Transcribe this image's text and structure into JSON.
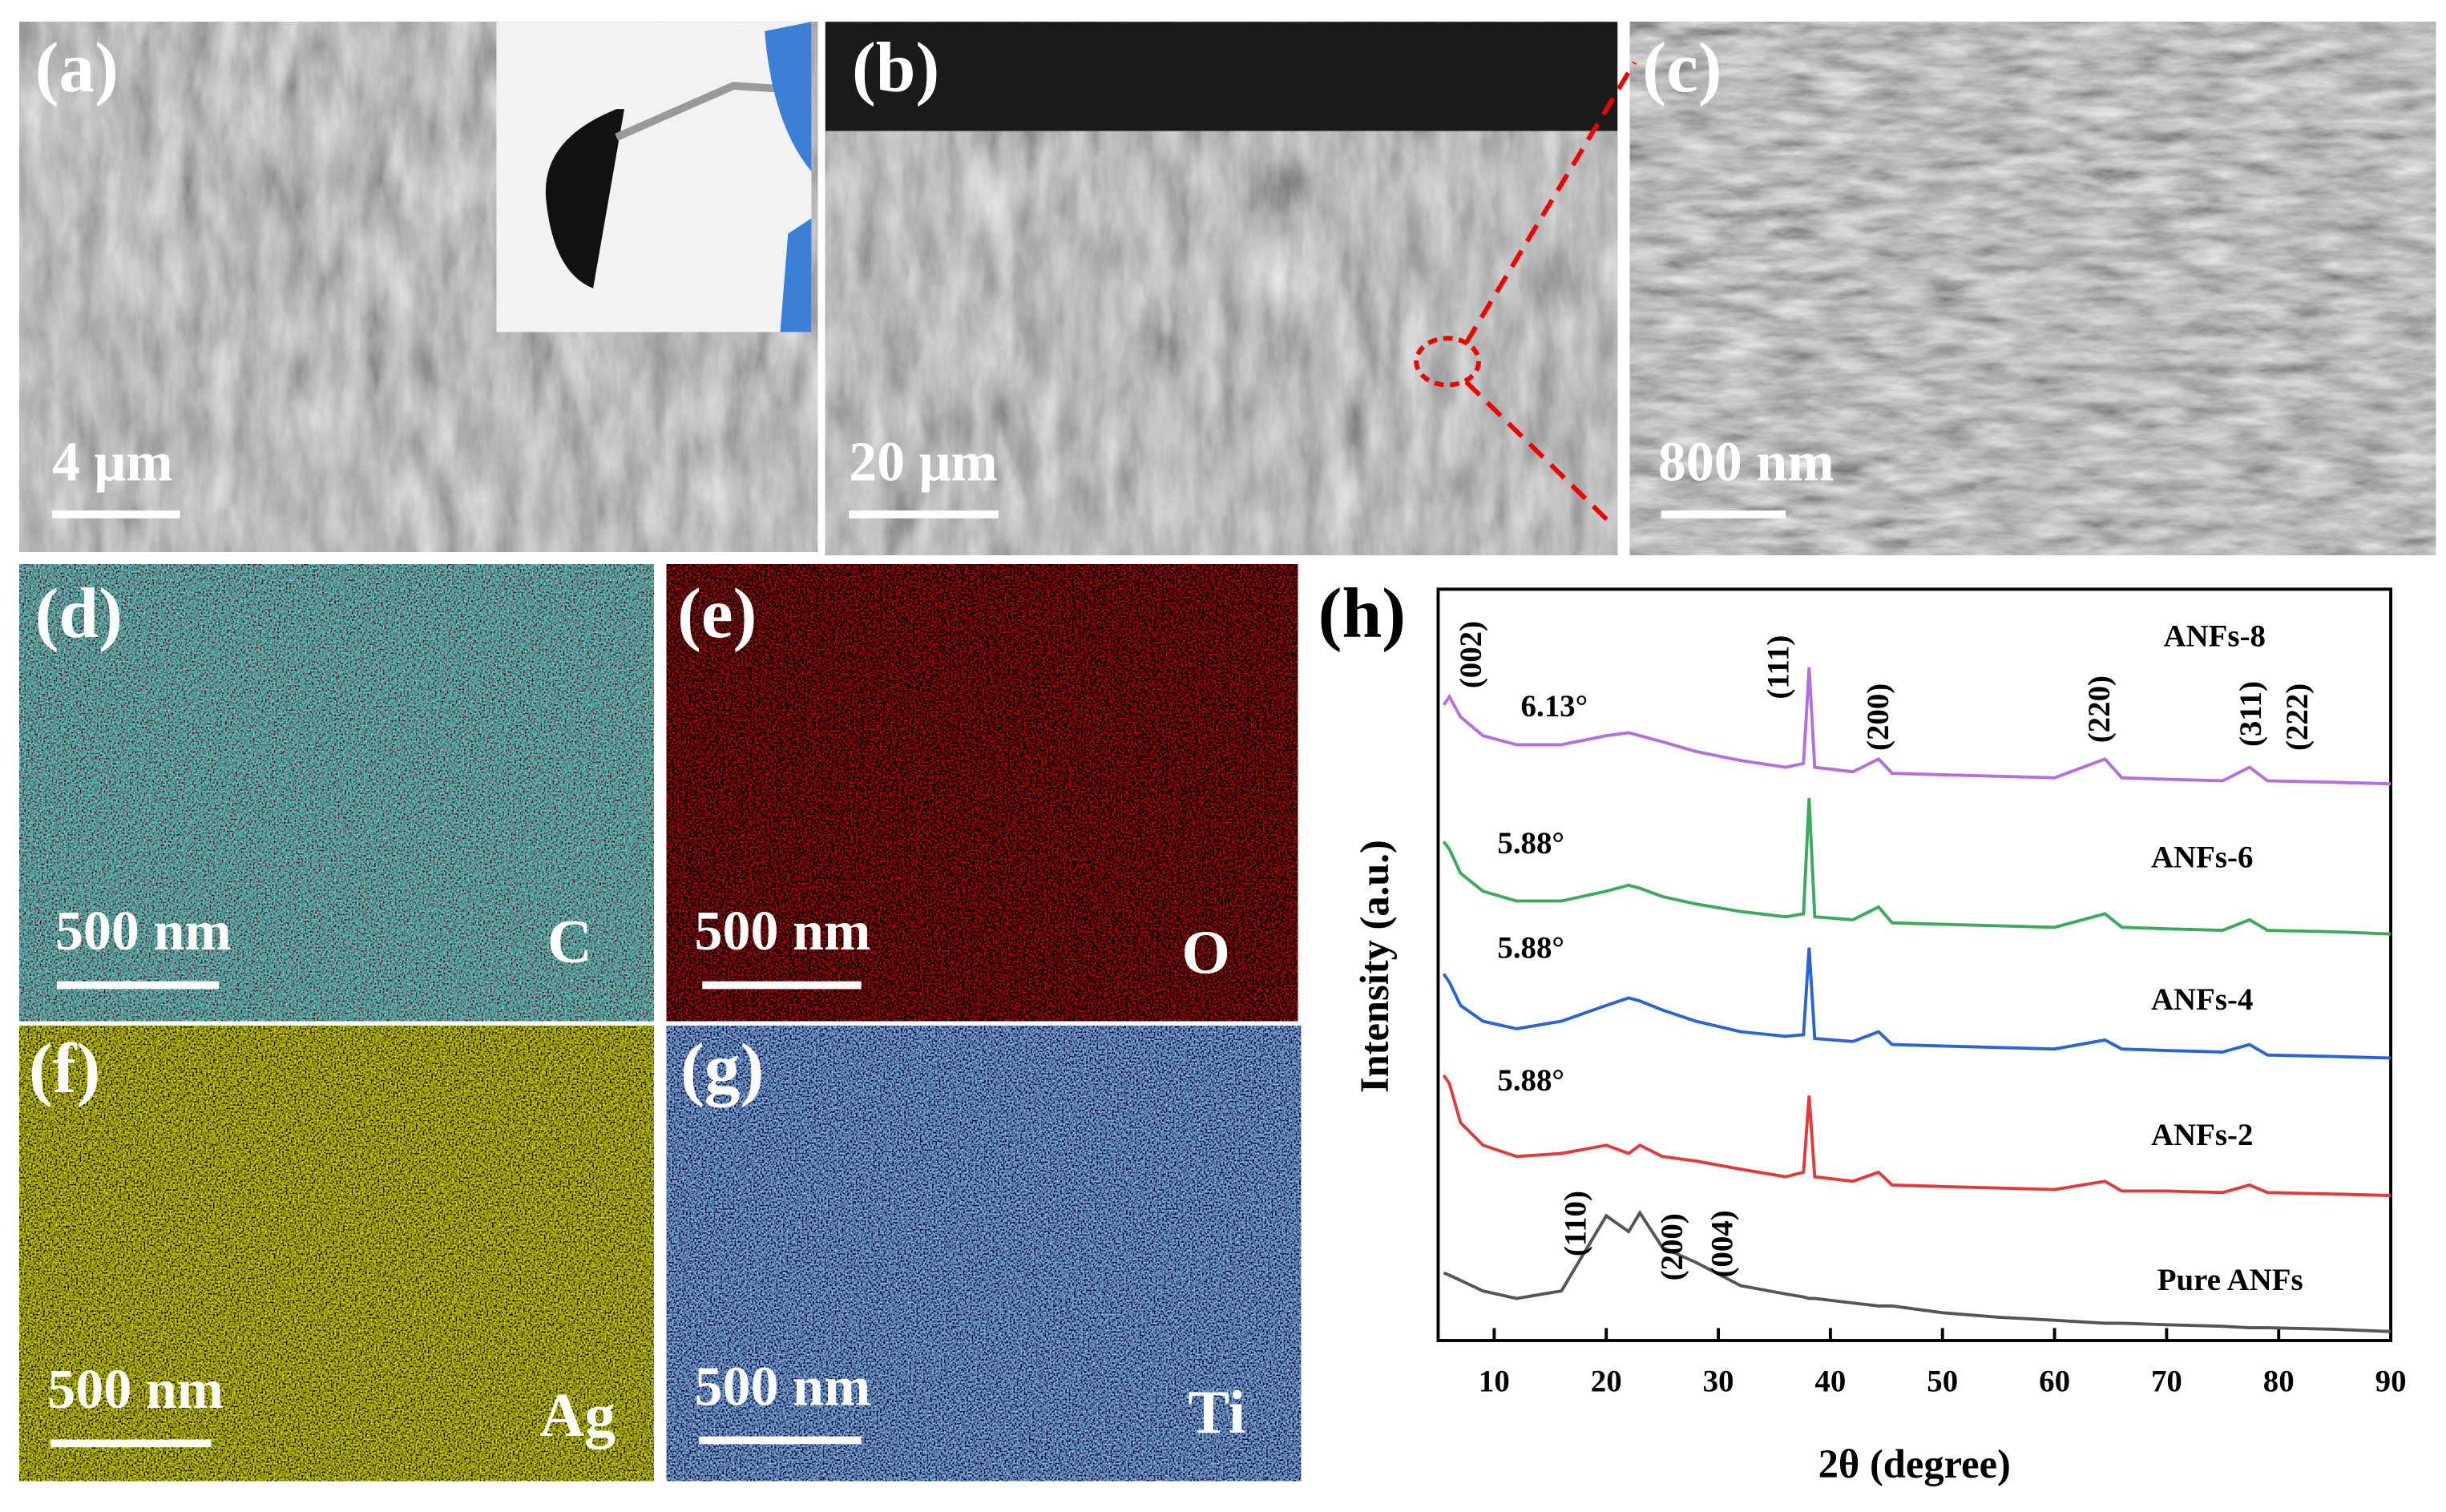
{
  "panels": [
    {
      "label": "(a)",
      "scale_bar": "4 μm"
    },
    {
      "label": "(b)",
      "scale_bar": "20 μm"
    },
    {
      "label": "(c)",
      "scale_bar": "800 nm"
    },
    {
      "label": "(d)",
      "scale_bar": "500 nm",
      "element": "C"
    },
    {
      "label": "(e)",
      "scale_bar": "500 nm",
      "element": "O"
    },
    {
      "label": "(f)",
      "scale_bar": "500 nm",
      "element": "Ag"
    },
    {
      "label": "(g)",
      "scale_bar": "500 nm",
      "element": "Ti"
    }
  ],
  "chart_data": {
    "type": "line",
    "label": "(h)",
    "x_label": "2θ (degree)",
    "y_label": "Intensity (a.u.)",
    "x": [
      5.5,
      6,
      7,
      9,
      12,
      16,
      20,
      22,
      23,
      25,
      28,
      32,
      36,
      37.6,
      38.1,
      38.6,
      42,
      44.3,
      45.5,
      50,
      55,
      60,
      64.5,
      66,
      70,
      75,
      77.4,
      79,
      85,
      90
    ],
    "xlim": [
      5,
      90
    ],
    "xticks": [
      10,
      20,
      30,
      40,
      50,
      60,
      70,
      80,
      90
    ],
    "ylim": [
      0,
      100
    ],
    "series": [
      {
        "name": "ANFs-8",
        "color": "#b36ee0",
        "values": [
          84.6,
          85.7,
          83,
          80.5,
          79.3,
          79.3,
          80.5,
          80.9,
          80.5,
          79.7,
          78.4,
          77.2,
          76.3,
          76.8,
          89.6,
          76.3,
          75.7,
          77.4,
          75.5,
          75.3,
          75.1,
          74.9,
          77.4,
          74.9,
          74.7,
          74.5,
          76.3,
          74.5,
          74.3,
          74.1
        ]
      },
      {
        "name": "ANFs-6",
        "color": "#3caa5a",
        "values": [
          66.4,
          65.4,
          62.2,
          59.8,
          58.5,
          58.5,
          59.8,
          60.6,
          60.2,
          59.1,
          58.1,
          57.1,
          56.4,
          56.8,
          72.2,
          56.4,
          56,
          57.7,
          55.6,
          55.4,
          55.2,
          55,
          56.8,
          55,
          54.8,
          54.6,
          56,
          54.6,
          54.4,
          54.1
        ]
      },
      {
        "name": "ANFs-4",
        "color": "#2a63d4",
        "values": [
          48.8,
          47.7,
          44.6,
          42.5,
          41.5,
          42.5,
          44.6,
          45.6,
          45.2,
          44,
          42.5,
          41.1,
          40.5,
          40.7,
          52.3,
          40.2,
          39.8,
          41.1,
          39.4,
          39.2,
          39,
          38.8,
          40,
          38.8,
          38.6,
          38.4,
          39.4,
          38,
          37.8,
          37.6
        ]
      },
      {
        "name": "ANFs-2",
        "color": "#e03a3a",
        "values": [
          35.3,
          34.2,
          29,
          26,
          24.5,
          24.9,
          26,
          24.9,
          26,
          24.5,
          23.9,
          22.8,
          21.8,
          22.4,
          32.6,
          21.8,
          21.2,
          22.4,
          20.7,
          20.5,
          20.3,
          20.1,
          21.2,
          19.9,
          19.9,
          19.7,
          20.7,
          19.7,
          19.5,
          19.3
        ]
      },
      {
        "name": "Pure ANFs",
        "color": "#555555",
        "values": [
          9,
          8.7,
          8,
          6.6,
          5.6,
          6.6,
          16.6,
          14.5,
          17,
          12.4,
          10.4,
          7.3,
          6.2,
          5.8,
          5.6,
          5.6,
          5,
          4.6,
          4.6,
          3.7,
          3.1,
          2.7,
          2.3,
          2.3,
          2.1,
          1.9,
          1.7,
          1.7,
          1.5,
          1.2
        ]
      }
    ],
    "annotations": [
      "(002)",
      "6.13°",
      "(111)",
      "(200)",
      "(220)",
      "(311)",
      "(222)",
      "5.88°",
      "5.88°",
      "5.88°",
      "(110)",
      "(200)",
      "(004)"
    ]
  }
}
